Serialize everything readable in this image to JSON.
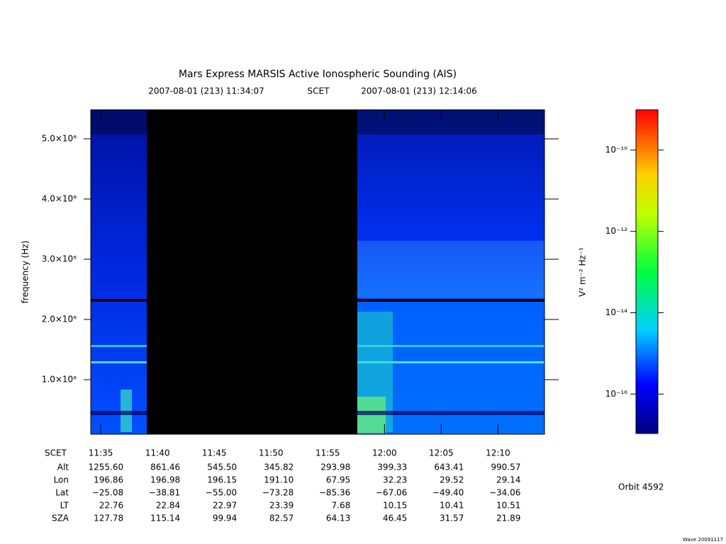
{
  "chart_data": {
    "type": "spectrogram",
    "title": "Mars Express MARSIS Active Ionospheric Sounding (AIS)",
    "start": "2007-08-01 (213) 11:34:07",
    "scet": "SCET",
    "end": "2007-08-01 (213) 12:14:06",
    "ylabel": "frequency (Hz)",
    "ylim": [
      94000,
      5482000
    ],
    "yticks": [
      {
        "value": 1000000,
        "label": "1.0×10⁶"
      },
      {
        "value": 2000000,
        "label": "2.0×10⁶"
      },
      {
        "value": 3000000,
        "label": "3.0×10⁶"
      },
      {
        "value": 4000000,
        "label": "4.0×10⁶"
      },
      {
        "value": 5000000,
        "label": "5.0×10⁶"
      }
    ],
    "xticks": [
      "11:35",
      "11:40",
      "11:45",
      "11:50",
      "11:55",
      "12:00",
      "12:05",
      "12:10"
    ],
    "ephemeris": [
      {
        "label": "Alt",
        "values": [
          "1255.60",
          "861.46",
          "545.50",
          "345.82",
          "293.98",
          "399.33",
          "643.41",
          "990.57"
        ]
      },
      {
        "label": "Lon",
        "values": [
          "196.86",
          "196.98",
          "196.15",
          "191.10",
          "67.95",
          "32.23",
          "29.52",
          "29.14"
        ]
      },
      {
        "label": "Lat",
        "values": [
          "−25.08",
          "−38.81",
          "−55.00",
          "−73.28",
          "−85.36",
          "−67.06",
          "−49.40",
          "−34.06"
        ]
      },
      {
        "label": "LT",
        "values": [
          "22.76",
          "22.84",
          "22.97",
          "23.39",
          "7.68",
          "10.15",
          "10.41",
          "10.51"
        ]
      },
      {
        "label": "SZA",
        "values": [
          "127.78",
          "115.14",
          "99.94",
          "82.57",
          "64.13",
          "46.45",
          "31.57",
          "21.89"
        ]
      }
    ],
    "colorbar": {
      "label": "V² m⁻² Hz⁻¹",
      "log": true,
      "lim": [
        1.07e-17,
        9.8e-10
      ],
      "ticks": [
        {
          "value": 1e-16,
          "label": "10⁻¹⁶"
        },
        {
          "value": 1e-14,
          "label": "10⁻¹⁴"
        },
        {
          "value": 1e-12,
          "label": "10⁻¹²"
        },
        {
          "value": 1e-10,
          "label": "10⁻¹⁰"
        }
      ]
    },
    "orbit": "Orbit 4592",
    "footer": "Wave 20091117"
  }
}
